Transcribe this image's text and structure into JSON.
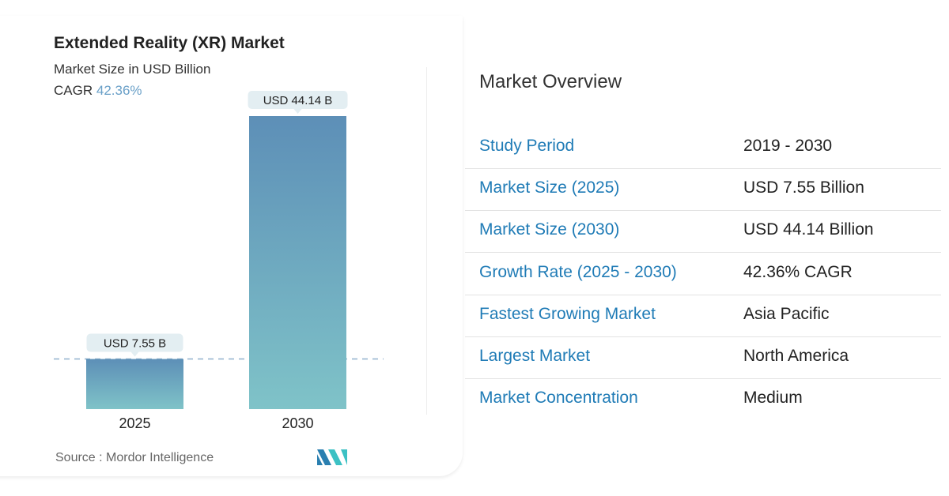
{
  "chart_data": {
    "type": "bar",
    "title": "Extended Reality (XR) Market",
    "subtitle": "Market Size in USD Billion",
    "cagr_label": "CAGR",
    "cagr_value": "42.36%",
    "categories": [
      "2025",
      "2030"
    ],
    "values": [
      7.55,
      44.14
    ],
    "data_labels": [
      "USD 7.55 B",
      "USD 44.14 B"
    ],
    "colors": {
      "top": "#5d8fb7",
      "bottom": "#7fc3c8"
    },
    "source": "Source :  Mordor Intelligence"
  },
  "overview": {
    "title": "Market Overview",
    "rows": [
      {
        "label": "Study Period",
        "value": "2019 - 2030"
      },
      {
        "label": "Market Size (2025)",
        "value": "USD 7.55 Billion"
      },
      {
        "label": "Market Size (2030)",
        "value": "USD 44.14 Billion"
      },
      {
        "label": "Growth Rate (2025 - 2030)",
        "value": "42.36% CAGR"
      },
      {
        "label": "Fastest Growing Market",
        "value": "Asia Pacific"
      },
      {
        "label": "Largest Market",
        "value": "North America"
      },
      {
        "label": "Market Concentration",
        "value": "Medium"
      }
    ]
  }
}
